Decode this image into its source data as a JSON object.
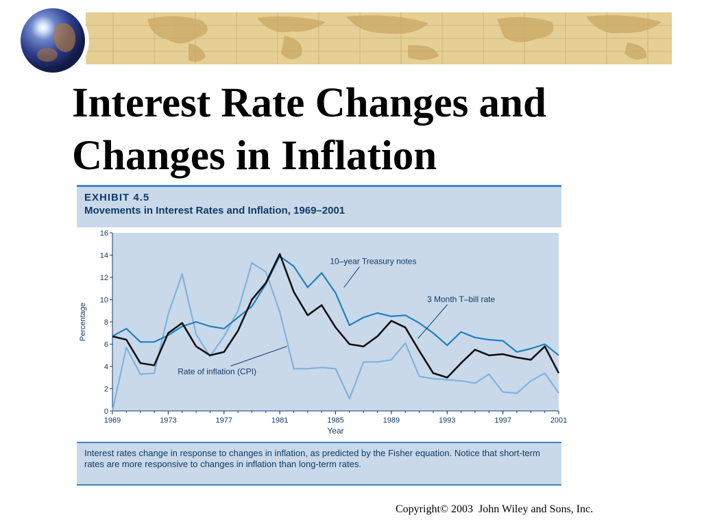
{
  "slide": {
    "title_line1": "Interest Rate Changes and",
    "title_line2": "Changes in Inflation",
    "copyright": "Copyright© 2003  John Wiley and Sons, Inc."
  },
  "exhibit": {
    "label": "EXHIBIT 4.5",
    "subtitle": "Movements in Interest Rates and Inflation, 1969–2001",
    "caption": "Interest rates change in response to changes in inflation, as predicted by the Fisher equation. Notice that short-term rates are more responsive to changes in inflation than long-term rates."
  },
  "colors": {
    "banner": "#e6cf95",
    "panel_fill": "#c9d9ea",
    "panel_border": "#3d87c5",
    "treasury_line": "#1f7fc0",
    "tbill_line": "#111111",
    "cpi_line": "#7fb3de",
    "text_navy": "#0e3b66"
  },
  "chart_data": {
    "type": "line",
    "xlabel": "Year",
    "ylabel": "Percentage",
    "xlim": [
      1969,
      2001
    ],
    "ylim": [
      0,
      16
    ],
    "x_ticks": [
      1969,
      1973,
      1977,
      1981,
      1985,
      1989,
      1993,
      1997,
      2001
    ],
    "y_ticks": [
      0,
      2,
      4,
      6,
      8,
      10,
      12,
      14,
      16
    ],
    "x": [
      1969,
      1970,
      1971,
      1972,
      1973,
      1974,
      1975,
      1976,
      1977,
      1978,
      1979,
      1980,
      1981,
      1982,
      1983,
      1984,
      1985,
      1986,
      1987,
      1988,
      1989,
      1990,
      1991,
      1992,
      1993,
      1994,
      1995,
      1996,
      1997,
      1998,
      1999,
      2000,
      2001
    ],
    "series": [
      {
        "name": "10–year Treasury notes",
        "color": "#1f7fc0",
        "values": [
          6.7,
          7.4,
          6.2,
          6.2,
          6.8,
          7.6,
          8.0,
          7.6,
          7.4,
          8.4,
          9.4,
          11.4,
          13.9,
          13.0,
          11.1,
          12.4,
          10.6,
          7.7,
          8.4,
          8.8,
          8.5,
          8.6,
          7.9,
          7.0,
          5.9,
          7.1,
          6.6,
          6.4,
          6.3,
          5.3,
          5.6,
          6.0,
          5.0
        ]
      },
      {
        "name": "3 Month T–bill rate",
        "color": "#111111",
        "values": [
          6.7,
          6.4,
          4.3,
          4.1,
          7.0,
          7.9,
          5.8,
          5.0,
          5.3,
          7.2,
          10.0,
          11.5,
          14.1,
          10.7,
          8.6,
          9.5,
          7.5,
          6.0,
          5.8,
          6.7,
          8.1,
          7.5,
          5.4,
          3.4,
          3.0,
          4.3,
          5.5,
          5.0,
          5.1,
          4.8,
          4.6,
          5.8,
          3.4
        ]
      },
      {
        "name": "Rate of inflation (CPI)",
        "color": "#7fb3de",
        "values": [
          0.0,
          5.7,
          3.3,
          3.4,
          8.7,
          12.3,
          6.9,
          4.9,
          6.7,
          9.0,
          13.3,
          12.5,
          8.9,
          3.8,
          3.8,
          3.9,
          3.8,
          1.1,
          4.4,
          4.4,
          4.6,
          6.1,
          3.1,
          2.9,
          2.8,
          2.7,
          2.5,
          3.3,
          1.7,
          1.6,
          2.7,
          3.4,
          1.6
        ]
      }
    ],
    "annotations": [
      {
        "text": "10–year Treasury notes",
        "x": 1987.7,
        "y": 13.2,
        "arrow_to": [
          1985.6,
          11.1
        ],
        "series": 0
      },
      {
        "text": "3 Month T–bill rate",
        "x": 1994.0,
        "y": 9.8,
        "arrow_to": [
          1990.9,
          6.5
        ],
        "series": 1
      },
      {
        "text": "Rate of inflation (CPI)",
        "x": 1976.5,
        "y": 3.3,
        "arrow_to": [
          1981.5,
          5.8
        ],
        "series": 2
      }
    ],
    "grid": false,
    "legend": "none"
  }
}
